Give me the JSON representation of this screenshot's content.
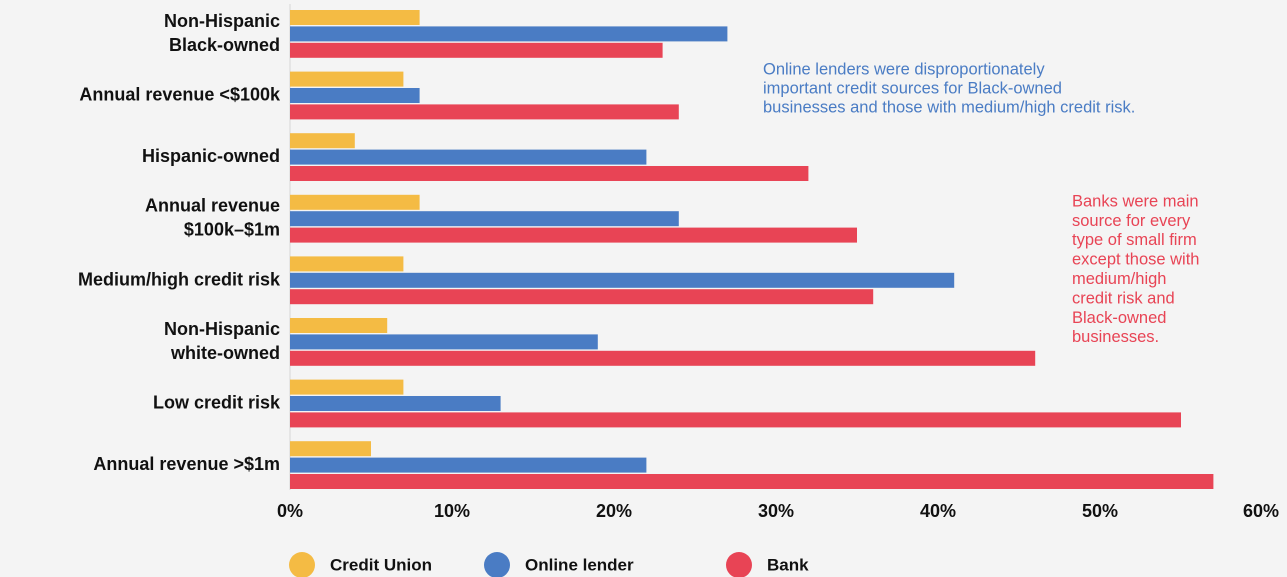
{
  "chart_data": {
    "type": "bar",
    "orientation": "horizontal",
    "categories": [
      "Non-Hispanic\nBlack-owned",
      "Annual revenue <$100k",
      "Hispanic-owned",
      "Annual revenue\n$100k–$1m",
      "Medium/high credit risk",
      "Non-Hispanic\nwhite-owned",
      "Low credit risk",
      "Annual revenue >$1m"
    ],
    "series": [
      {
        "name": "Credit Union",
        "color": "#f4bb44",
        "values": [
          8,
          7,
          4,
          8,
          7,
          6,
          7,
          5
        ]
      },
      {
        "name": "Online lender",
        "color": "#4a7cc4",
        "values": [
          27,
          8,
          22,
          24,
          41,
          19,
          13,
          22
        ]
      },
      {
        "name": "Bank",
        "color": "#e84455",
        "values": [
          23,
          24,
          32,
          35,
          36,
          46,
          55,
          57
        ]
      }
    ],
    "xlim": [
      0,
      60
    ],
    "xticks": [
      {
        "value": 0,
        "label": "0%"
      },
      {
        "value": 10,
        "label": "10%"
      },
      {
        "value": 20,
        "label": "20%"
      },
      {
        "value": 30,
        "label": "30%"
      },
      {
        "value": 40,
        "label": "40%"
      },
      {
        "value": 50,
        "label": "50%"
      },
      {
        "value": 60,
        "label": "60%"
      }
    ],
    "grid": false,
    "legend": "bottom",
    "annotations": [
      {
        "color": "#4a7cc4",
        "lines": [
          "Online lenders were disproportionately",
          "important credit sources for Black-owned",
          "businesses and those with medium/high credit risk."
        ]
      },
      {
        "color": "#e84455",
        "lines": [
          "Banks were main",
          "source for every",
          "type of small firm",
          "except those with",
          "medium/high",
          "credit risk and",
          "Black-owned",
          "businesses."
        ]
      }
    ]
  }
}
